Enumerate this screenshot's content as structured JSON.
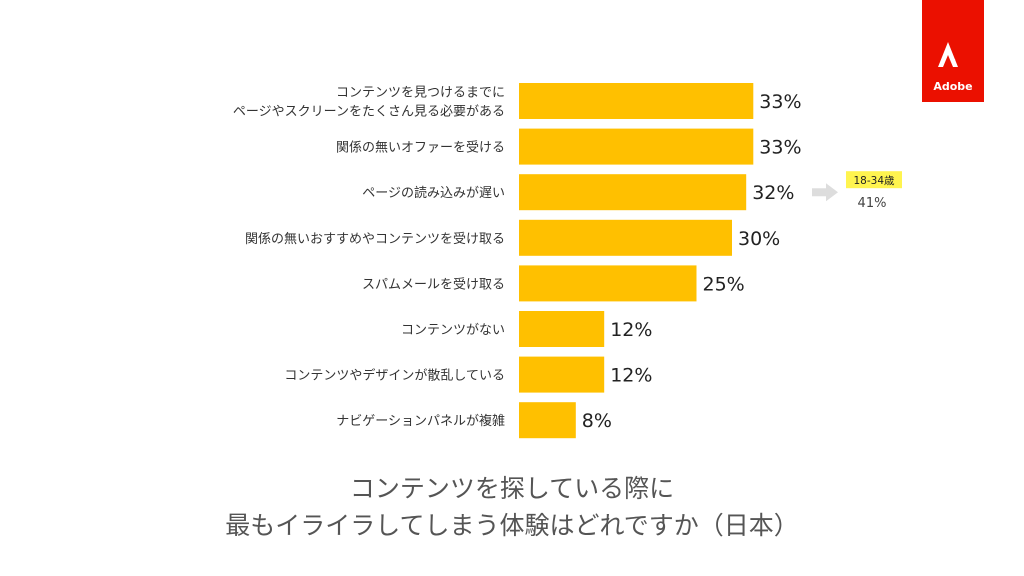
{
  "chart_data": {
    "type": "bar",
    "orientation": "horizontal",
    "title_lines": [
      "コンテンツを探している際に",
      "最もイライラしてしまう体験はどれですか（日本）"
    ],
    "categories": [
      [
        "コンテンツを見つけるまでに",
        "ページやスクリーンをたくさん見る必要がある"
      ],
      [
        "関係の無いオファーを受ける"
      ],
      [
        "ページの読み込みが遅い"
      ],
      [
        "関係の無いおすすめやコンテンツを受け取る"
      ],
      [
        "スパムメールを受け取る"
      ],
      [
        "コンテンツがない"
      ],
      [
        "コンテンツやデザインが散乱している"
      ],
      [
        "ナビゲーションパネルが複雑"
      ]
    ],
    "values": [
      33,
      33,
      32,
      30,
      25,
      12,
      12,
      8
    ],
    "value_labels": [
      "33%",
      "33%",
      "32%",
      "30%",
      "25%",
      "12%",
      "12%",
      "8%"
    ],
    "xlim": [
      0,
      35
    ],
    "bar_color": "#FFC000",
    "callout": {
      "category_index": 2,
      "tag": "18-34歳",
      "value": 41,
      "value_label": "41%",
      "tag_color": "#FFF44F",
      "arrow_color": "#DDDDDD"
    }
  },
  "brand": {
    "name": "Adobe",
    "color": "#EB1000"
  }
}
